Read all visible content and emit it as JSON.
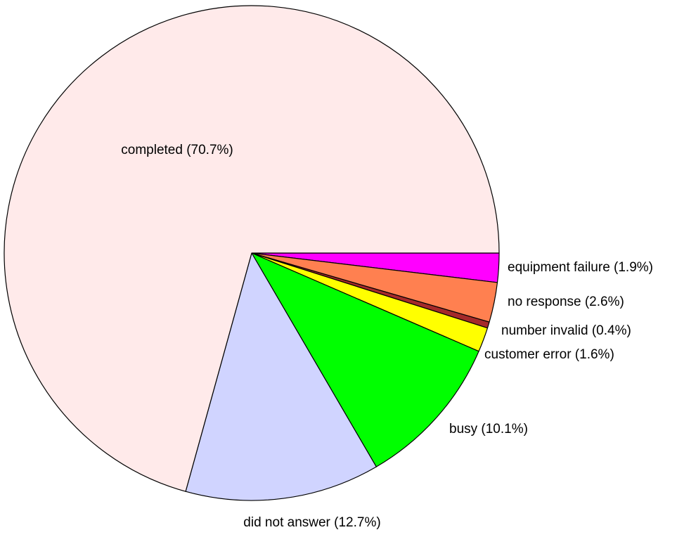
{
  "chart_data": {
    "type": "pie",
    "start": "3 o'clock",
    "direction": "clockwise",
    "slices": [
      {
        "label": "equipment failure (1.9%)",
        "value": 1.9,
        "color": "#ff00ff"
      },
      {
        "label": "no response (2.6%)",
        "value": 2.6,
        "color": "#ff8050"
      },
      {
        "label": "number invalid (0.4%)",
        "value": 0.4,
        "color": "#a52a2a"
      },
      {
        "label": "customer error (1.6%)",
        "value": 1.6,
        "color": "#ffff00"
      },
      {
        "label": "busy (10.1%)",
        "value": 10.1,
        "color": "#00ff00"
      },
      {
        "label": "did not answer (12.7%)",
        "value": 12.7,
        "color": "#d0d4ff"
      },
      {
        "label": "completed (70.7%)",
        "value": 70.7,
        "color": "#ffeaea"
      }
    ]
  }
}
